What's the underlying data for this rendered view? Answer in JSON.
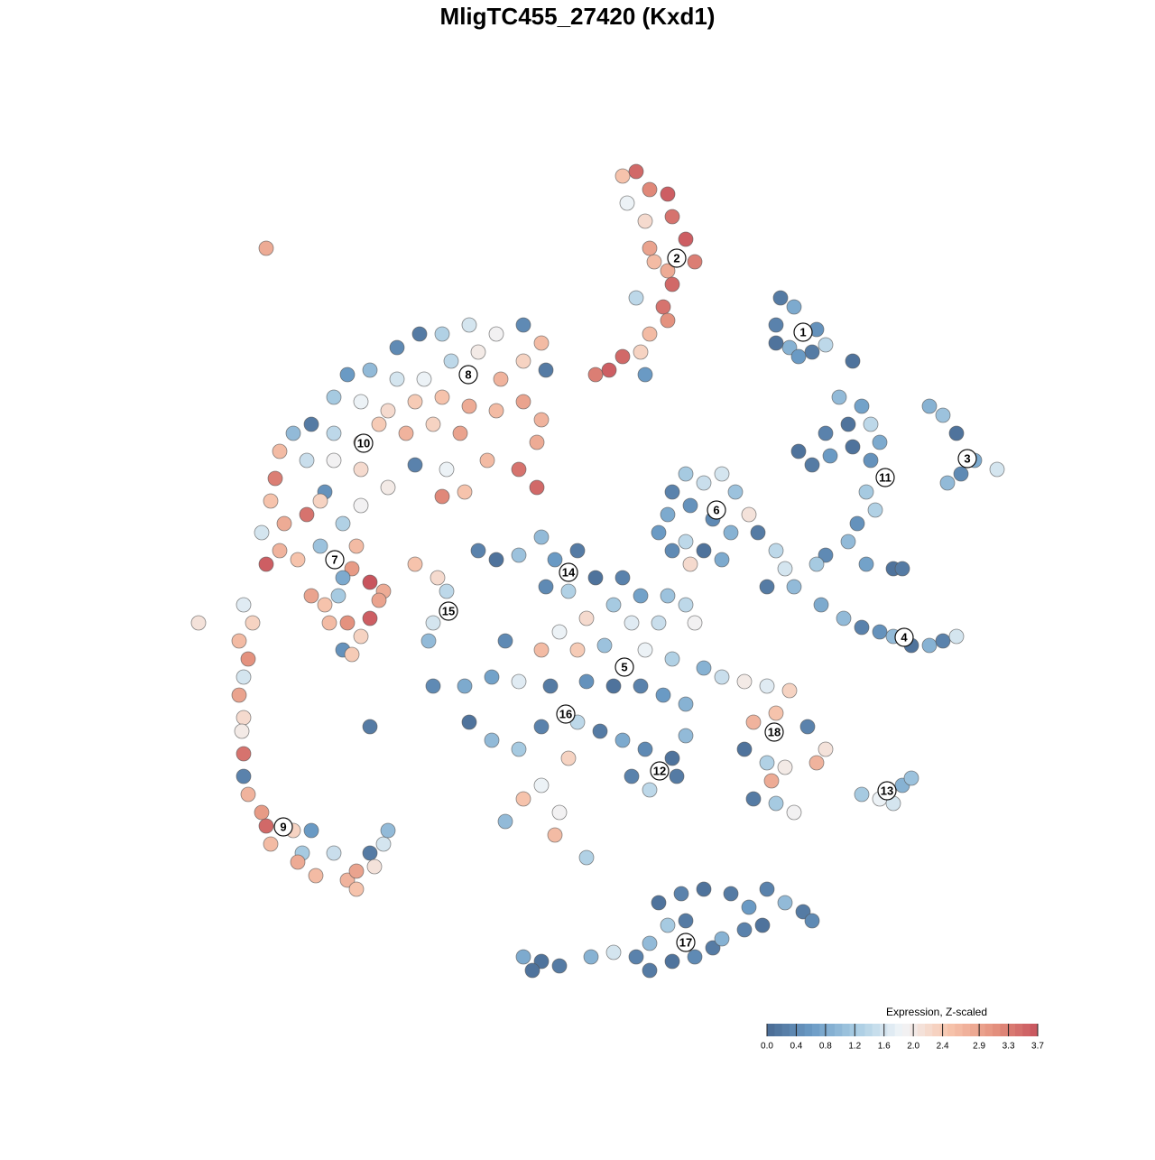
{
  "chart_data": {
    "type": "scatter",
    "title": "MligTC455_27420 (Kxd1)",
    "xlim": [
      -46,
      46
    ],
    "ylim": [
      -46,
      46
    ],
    "x": [
      3,
      4.5,
      6,
      8,
      8.5,
      10,
      11,
      8,
      6.5,
      6,
      8.5,
      7.5,
      8,
      6,
      4.5,
      5,
      3,
      5.5,
      1.5,
      0,
      3.5,
      5.5,
      20.5,
      22,
      20,
      21.5,
      24,
      24.5,
      22.5,
      25.5,
      28.5,
      20,
      37,
      38.5,
      40,
      42,
      44.5,
      39,
      40.5,
      27,
      29.5,
      28,
      25.5,
      22.5,
      24,
      26,
      28.5,
      30.5,
      31.5,
      30,
      31,
      29,
      28,
      25.5,
      24.5,
      30,
      33,
      34,
      30.5,
      20,
      21,
      22,
      19,
      25,
      27.5,
      29.5,
      31.5,
      33,
      35,
      37,
      38.5,
      40,
      10,
      12,
      14,
      15.5,
      8.5,
      8,
      10.5,
      13,
      15,
      17,
      18,
      7,
      10,
      12,
      14,
      10.5,
      8.5,
      -13,
      -11,
      -8.5,
      -6,
      -4.5,
      -2,
      -5.5,
      -3,
      0,
      3,
      5,
      8,
      10,
      2,
      -1,
      4,
      7,
      11,
      -4,
      -6,
      -2,
      1,
      5.5,
      8.5,
      12,
      -10,
      -11.5,
      -8.5,
      -5,
      -1,
      2,
      5,
      7.5,
      10,
      -14,
      -11.5,
      -8.5,
      -6,
      -2,
      0.5,
      3,
      5.5,
      8.5,
      10,
      4,
      6,
      9,
      -3,
      -6,
      -8,
      -10,
      -4,
      -4.5,
      -1,
      -18,
      -14.5,
      -25,
      -20,
      -17.5,
      -16.5,
      -18,
      -18.5,
      14,
      16.5,
      19,
      21.5,
      20,
      17.5,
      23.5,
      16.5,
      19,
      21,
      24.5,
      25.5,
      19.5,
      17.5,
      22,
      20,
      29.5,
      31.5,
      33,
      34,
      35,
      -8,
      -6,
      -4,
      -0.5,
      2,
      4.5,
      6,
      8.5,
      11,
      13,
      14,
      16.5,
      18.5,
      10,
      8,
      7,
      9.5,
      12,
      15,
      17,
      19,
      21,
      23,
      24,
      6,
      -7,
      -22,
      -19.5,
      -17,
      -14,
      -11,
      -8,
      -6,
      -5.5,
      -8,
      -10.5,
      -13,
      -16,
      -19,
      -22,
      -25,
      -27.5,
      -29,
      -26,
      -23,
      -20,
      -17,
      -14,
      -11,
      -8,
      -6,
      -6.5,
      -8.5,
      -6.5,
      -12,
      -15,
      -18,
      -21,
      -24,
      -26,
      -29,
      -31.5,
      -33.5,
      -35,
      -32,
      -29,
      -26,
      -23,
      -20,
      -16.5,
      -17,
      -14.5,
      -30,
      -35.5,
      -36,
      -34.5,
      -32,
      -30.5,
      -28,
      -26,
      -37,
      -35,
      -36.5,
      -33,
      -30.5,
      -26.5,
      -27,
      -28,
      -25,
      -23.5,
      -31.5,
      -30,
      -28.5,
      -29.5,
      -27.5,
      -25,
      -26,
      -28,
      -27,
      -24,
      -36.5,
      -44,
      -39,
      -38,
      -39.5,
      -38.5,
      -39,
      -39.5,
      -39,
      -39.2,
      -39,
      -39,
      -38.5,
      -37,
      -36.5,
      -36,
      -33.5,
      -31.5,
      -32.5,
      -33,
      -31,
      -29,
      -27.5,
      -26.5,
      -25,
      -23.5,
      -23,
      -24.5,
      -26.5
    ],
    "y": [
      44.5,
      45,
      43,
      42.5,
      40,
      37.5,
      35,
      34,
      35,
      36.5,
      32.5,
      30,
      28.5,
      27,
      31,
      25,
      24.5,
      22.5,
      23,
      22.5,
      41.5,
      39.5,
      31,
      30,
      28,
      25.5,
      25,
      27.5,
      24.5,
      25.8,
      24,
      26,
      19,
      18,
      16,
      13,
      12,
      10.5,
      11.5,
      20,
      19,
      17,
      16,
      14,
      12.5,
      13.5,
      14.5,
      13,
      15,
      9.5,
      7.5,
      6,
      4,
      2.5,
      1.5,
      1.5,
      1,
      1,
      17,
      3,
      1,
      -1,
      -1,
      -3,
      -4.5,
      -5.5,
      -6,
      -6.5,
      -7.5,
      -7.5,
      -7,
      -6.5,
      11.5,
      10.5,
      11.5,
      9.5,
      9.5,
      7,
      8,
      6.5,
      5,
      7,
      5,
      5,
      4,
      3,
      2,
      1.5,
      3,
      3,
      2,
      2.5,
      4.5,
      2,
      3,
      -1,
      -1.5,
      0,
      0,
      -2,
      -2,
      -3,
      -3,
      -4.5,
      -5,
      -5,
      -5,
      -6,
      -8,
      -8,
      -7.5,
      -8,
      -9,
      -10,
      -7,
      -11,
      -11.5,
      -12,
      -11.5,
      -12,
      -12,
      -13,
      -14,
      -16,
      -18,
      -19,
      -16.5,
      -16,
      -17,
      -18,
      -19,
      -20,
      -17.5,
      -22,
      -23.5,
      -22,
      -20,
      -23,
      -24.5,
      -27,
      -26,
      -28.5,
      -31,
      -12,
      -12,
      -16.5,
      1.5,
      0,
      -1.5,
      -5,
      -7,
      -11,
      -11.5,
      -12,
      -12.5,
      -15,
      -16,
      -16.5,
      -19,
      -20.5,
      -21,
      -20.5,
      -19,
      -22.5,
      -24.5,
      -26,
      -25,
      -24,
      -24.5,
      -25,
      -23,
      -22.2,
      -42,
      -42.5,
      -43,
      -42,
      -41.5,
      -42,
      -40.5,
      -42.5,
      -42,
      -41,
      -40,
      -39,
      -38.5,
      -38,
      -38.5,
      -36,
      -35,
      -34.5,
      -35,
      -36.5,
      -34.5,
      -36,
      -37,
      -38,
      -43.5,
      -43.5,
      25.5,
      27,
      27,
      28,
      27,
      28,
      26,
      23,
      24,
      22,
      25,
      24,
      22,
      22,
      23,
      22.5,
      20,
      19.5,
      18.5,
      19.5,
      20,
      19,
      18.5,
      19.5,
      17.5,
      15,
      12,
      10,
      13,
      16,
      17,
      16,
      17,
      15,
      16,
      17,
      16,
      14,
      13,
      13,
      12,
      10,
      12.5,
      12,
      9,
      9.5,
      9.5,
      11,
      8.5,
      6,
      7,
      8.5,
      6,
      8,
      5,
      3,
      1.5,
      2,
      3.5,
      3.5,
      1,
      0,
      -0.5,
      -1.5,
      -2,
      -3,
      -2,
      -5,
      -5,
      -4.5,
      -6.5,
      -8,
      -8.5,
      -2.5,
      36.5,
      -5,
      -3,
      -5,
      -7,
      -9,
      -11,
      -13,
      -15.5,
      -17,
      -19.5,
      -22,
      -24,
      -26,
      -27.5,
      -29.5,
      -28,
      -28,
      -30.5,
      -31.5,
      -33,
      -30.5,
      -33.5,
      -32.5,
      -30.5,
      -29.5,
      -28,
      -32,
      -34.5
    ],
    "values": [
      2.5,
      3.5,
      3.2,
      3.6,
      3.4,
      3.6,
      3.3,
      2.8,
      2.6,
      2.9,
      3.5,
      3.4,
      3.1,
      2.6,
      1.4,
      2.3,
      3.5,
      0.6,
      3.6,
      3.3,
      1.8,
      2.2,
      0.2,
      0.8,
      0.3,
      0.9,
      0.2,
      0.5,
      0.6,
      1.4,
      0.1,
      0.1,
      0.9,
      1.1,
      0.1,
      0.8,
      1.6,
      1.0,
      0.4,
      1.0,
      0.7,
      0.1,
      0.3,
      0.1,
      0.2,
      0.6,
      0.1,
      0.5,
      0.8,
      1.2,
      1.3,
      0.5,
      1.0,
      0.4,
      1.2,
      0.7,
      0.1,
      0.2,
      1.4,
      1.4,
      1.6,
      1.0,
      0.2,
      0.8,
      1.0,
      0.3,
      0.5,
      1.0,
      0.1,
      0.9,
      0.3,
      1.6,
      1.2,
      1.5,
      1.6,
      1.1,
      0.3,
      0.8,
      0.5,
      0.4,
      0.9,
      2.1,
      0.2,
      0.6,
      1.4,
      0.1,
      0.8,
      2.2,
      0.4,
      0.3,
      0.1,
      1.1,
      1.0,
      0.6,
      0.2,
      0.4,
      1.3,
      0.1,
      0.3,
      0.7,
      1.1,
      1.4,
      1.2,
      2.2,
      1.7,
      1.5,
      1.9,
      1.8,
      2.6,
      2.4,
      1.1,
      1.8,
      1.3,
      0.9,
      0.4,
      0.7,
      1.7,
      0.2,
      0.5,
      0.1,
      0.3,
      0.6,
      0.9,
      0.1,
      1.0,
      1.2,
      0.3,
      1.4,
      0.2,
      0.8,
      0.4,
      0.1,
      1.0,
      0.3,
      1.4,
      0.2,
      2.3,
      1.8,
      2.5,
      1.0,
      1.9,
      2.6,
      1.3,
      0.4,
      0.8,
      0.2,
      2.5,
      2.2,
      1.4,
      1.6,
      1.0,
      1.5,
      2.0,
      1.7,
      2.3,
      2.5,
      2.7,
      0.3,
      0.1,
      1.3,
      2.0,
      2.7,
      2.1,
      2.8,
      0.2,
      1.9,
      1.2,
      1.2,
      1.8,
      1.6,
      0.9,
      1.1,
      0.8,
      0.1,
      0.2,
      0.9,
      1.6,
      0.3,
      1.0,
      0.1,
      0.4,
      0.2,
      0.9,
      0.3,
      0.1,
      0.2,
      1.2,
      0.1,
      0.3,
      0.1,
      0.2,
      0.6,
      0.3,
      1.0,
      0.2,
      0.4,
      0.2,
      0.1,
      0.4,
      0.2,
      1.3,
      1.6,
      1.9,
      0.4,
      2.6,
      0.2,
      2.3,
      2.7,
      2.0,
      1.4,
      1.8,
      1.6,
      1.0,
      0.6,
      1.2,
      1.8,
      2.2,
      2.4,
      2.5,
      2.8,
      2.6,
      2.9,
      2.7,
      2.8,
      3.4,
      3.5,
      2.6,
      2.9,
      2.3,
      2.7,
      2.4,
      2.3,
      1.4,
      0.2,
      1.0,
      2.6,
      1.5,
      1.9,
      2.2,
      2.0,
      0.3,
      1.8,
      3.2,
      2.5,
      0.5,
      3.3,
      2.5,
      2.8,
      3.4,
      2.3,
      1.3,
      1.9,
      1.6,
      2.7,
      3.6,
      2.5,
      1.1,
      2.6,
      3.0,
      0.8,
      3.7,
      2.8,
      2.9,
      2.5,
      1.2,
      2.6,
      3.1,
      3.6,
      2.3,
      0.5,
      2.4,
      2.9,
      2.8,
      2.1,
      1.7,
      2.3,
      2.6,
      3.1,
      1.6,
      2.9,
      2.2,
      2.0,
      3.4,
      0.3,
      2.7,
      3.0,
      3.5,
      2.6,
      2.3,
      0.6,
      1.2,
      2.8,
      2.6,
      1.5,
      2.7,
      2.9,
      0.2,
      1.6,
      1.0,
      2.1,
      2.5
    ],
    "clusters": {
      "labels": [
        "1",
        "2",
        "3",
        "4",
        "5",
        "6",
        "7",
        "8",
        "9",
        "10",
        "11",
        "12",
        "13",
        "14",
        "15",
        "16",
        "17",
        "18"
      ],
      "x": [
        23,
        9,
        41.2,
        34.2,
        3.2,
        13.4,
        -28.9,
        -14.1,
        -34.6,
        -25.7,
        32.1,
        7.1,
        32.3,
        -3,
        -16.3,
        -3.3,
        10,
        19.8
      ],
      "y": [
        27.2,
        35.4,
        13.2,
        -6.6,
        -9.9,
        7.5,
        2,
        22.5,
        -27.6,
        14.9,
        11.1,
        -21.4,
        -23.6,
        0.6,
        -3.7,
        -15.1,
        -40.4,
        -17.1
      ]
    },
    "colorbar": {
      "title": "Expression, Z-scaled",
      "lim": [
        0,
        3.7
      ],
      "ticks": [
        {
          "value": 0,
          "label": "0.0"
        },
        0.4,
        0.8,
        1.2,
        1.6,
        {
          "value": 2,
          "label": "2.0"
        },
        2.4,
        2.9,
        3.3,
        3.7
      ],
      "colors": [
        "#4a6b94",
        "#6b9bc5",
        "#a9cde3",
        "#f2f5f8",
        "#f7c6ae",
        "#e59480",
        "#c8545d"
      ]
    }
  }
}
